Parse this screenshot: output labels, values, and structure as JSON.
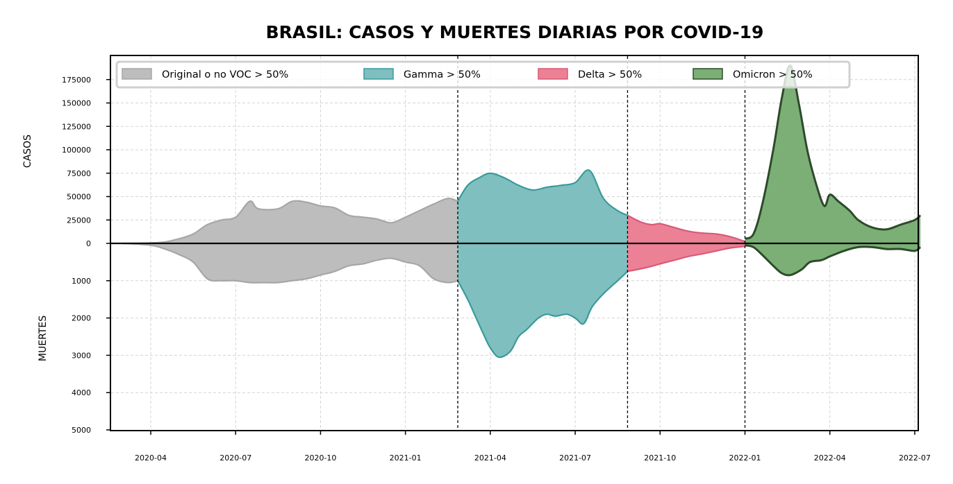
{
  "chart_data": {
    "type": "area",
    "title": "BRASIL: CASOS Y MUERTES DIARIAS POR COVID-19",
    "ylabel_top": "CASOS",
    "ylabel_bottom": "MUERTES",
    "x_ticks": [
      "2020-04",
      "2020-07",
      "2020-10",
      "2021-01",
      "2021-04",
      "2021-07",
      "2021-10",
      "2022-01",
      "2022-04",
      "2022-07"
    ],
    "cases_ticks": [
      0,
      25000,
      50000,
      75000,
      100000,
      125000,
      150000,
      175000
    ],
    "deaths_ticks": [
      1000,
      2000,
      3000,
      4000,
      5000
    ],
    "cases_ylim": [
      0,
      200000
    ],
    "deaths_ylim": [
      0,
      5000
    ],
    "xlim_months": [
      -1.4,
      27.1
    ],
    "vlines_months": [
      10.85,
      16.85,
      21.0
    ],
    "colors": {
      "original": "#bdbdbd",
      "original_edge": "#a6a6a6",
      "gamma": "#7fbfbf",
      "gamma_edge": "#3a9a9a",
      "delta": "#ec8196",
      "delta_edge": "#d85a77",
      "omicron": "#7baf76",
      "omicron_edge": "#2d4a2b"
    },
    "legend": [
      "Original o no VOC > 50%",
      "Gamma > 50%",
      "Delta > 50%",
      "Omicron > 50%"
    ],
    "series": [
      {
        "name": "Original o no VOC > 50%",
        "color_key": "original",
        "cases": [
          [
            -1,
            0
          ],
          [
            0,
            500
          ],
          [
            0.5,
            1500
          ],
          [
            1,
            5000
          ],
          [
            1.5,
            10000
          ],
          [
            2,
            20000
          ],
          [
            2.5,
            25000
          ],
          [
            3,
            28000
          ],
          [
            3.5,
            45000
          ],
          [
            3.8,
            37000
          ],
          [
            4.5,
            37000
          ],
          [
            5,
            45000
          ],
          [
            5.5,
            44000
          ],
          [
            6,
            40000
          ],
          [
            6.5,
            38000
          ],
          [
            7,
            30000
          ],
          [
            7.5,
            28000
          ],
          [
            8,
            26000
          ],
          [
            8.5,
            22000
          ],
          [
            9,
            28000
          ],
          [
            9.5,
            35000
          ],
          [
            10,
            42000
          ],
          [
            10.5,
            48000
          ],
          [
            10.85,
            45000
          ]
        ],
        "deaths": [
          [
            -1,
            0
          ],
          [
            0,
            50
          ],
          [
            0.5,
            150
          ],
          [
            1,
            300
          ],
          [
            1.5,
            500
          ],
          [
            2,
            950
          ],
          [
            2.5,
            1000
          ],
          [
            3,
            1000
          ],
          [
            3.5,
            1050
          ],
          [
            4,
            1050
          ],
          [
            4.5,
            1050
          ],
          [
            5,
            1000
          ],
          [
            5.5,
            950
          ],
          [
            6,
            850
          ],
          [
            6.5,
            750
          ],
          [
            7,
            600
          ],
          [
            7.5,
            550
          ],
          [
            8,
            450
          ],
          [
            8.5,
            400
          ],
          [
            9,
            500
          ],
          [
            9.5,
            600
          ],
          [
            10,
            950
          ],
          [
            10.5,
            1050
          ],
          [
            10.85,
            1000
          ]
        ]
      },
      {
        "name": "Gamma > 50%",
        "color_key": "gamma",
        "cases": [
          [
            10.85,
            45000
          ],
          [
            11.2,
            62000
          ],
          [
            11.6,
            70000
          ],
          [
            12,
            75000
          ],
          [
            12.5,
            70000
          ],
          [
            13,
            62000
          ],
          [
            13.5,
            57000
          ],
          [
            14,
            60000
          ],
          [
            14.5,
            62000
          ],
          [
            15,
            65000
          ],
          [
            15.5,
            78000
          ],
          [
            16,
            48000
          ],
          [
            16.5,
            35000
          ],
          [
            16.85,
            30000
          ]
        ],
        "deaths": [
          [
            10.85,
            1000
          ],
          [
            11.2,
            1500
          ],
          [
            11.5,
            2000
          ],
          [
            11.8,
            2500
          ],
          [
            12,
            2800
          ],
          [
            12.3,
            3050
          ],
          [
            12.7,
            2900
          ],
          [
            13,
            2500
          ],
          [
            13.3,
            2300
          ],
          [
            13.7,
            2000
          ],
          [
            14,
            1900
          ],
          [
            14.3,
            1950
          ],
          [
            14.7,
            1900
          ],
          [
            15,
            2000
          ],
          [
            15.3,
            2150
          ],
          [
            15.6,
            1700
          ],
          [
            16,
            1350
          ],
          [
            16.5,
            1000
          ],
          [
            16.85,
            750
          ]
        ]
      },
      {
        "name": "Delta > 50%",
        "color_key": "delta",
        "cases": [
          [
            16.85,
            30000
          ],
          [
            17.3,
            23000
          ],
          [
            17.7,
            20000
          ],
          [
            18,
            21000
          ],
          [
            18.5,
            17000
          ],
          [
            19,
            13000
          ],
          [
            19.5,
            11000
          ],
          [
            20,
            10000
          ],
          [
            20.5,
            7000
          ],
          [
            21,
            2000
          ]
        ],
        "deaths": [
          [
            16.85,
            750
          ],
          [
            17.5,
            650
          ],
          [
            18,
            550
          ],
          [
            18.5,
            450
          ],
          [
            19,
            350
          ],
          [
            19.5,
            280
          ],
          [
            20,
            200
          ],
          [
            20.5,
            120
          ],
          [
            21,
            80
          ]
        ]
      },
      {
        "name": "Omicron > 50%",
        "color_key": "omicron",
        "cases": [
          [
            21,
            5000
          ],
          [
            21.3,
            10000
          ],
          [
            21.6,
            40000
          ],
          [
            22,
            100000
          ],
          [
            22.3,
            155000
          ],
          [
            22.6,
            190000
          ],
          [
            22.9,
            150000
          ],
          [
            23.2,
            100000
          ],
          [
            23.5,
            65000
          ],
          [
            23.8,
            40000
          ],
          [
            24,
            52000
          ],
          [
            24.3,
            45000
          ],
          [
            24.7,
            35000
          ],
          [
            25,
            25000
          ],
          [
            25.5,
            17000
          ],
          [
            26,
            15000
          ],
          [
            26.5,
            20000
          ],
          [
            27,
            25000
          ],
          [
            27.2,
            30000
          ]
        ],
        "deaths": [
          [
            21,
            50
          ],
          [
            21.3,
            100
          ],
          [
            21.6,
            300
          ],
          [
            22,
            600
          ],
          [
            22.3,
            800
          ],
          [
            22.6,
            850
          ],
          [
            23,
            700
          ],
          [
            23.3,
            500
          ],
          [
            23.7,
            450
          ],
          [
            24,
            350
          ],
          [
            24.5,
            200
          ],
          [
            25,
            100
          ],
          [
            25.5,
            100
          ],
          [
            26,
            150
          ],
          [
            26.5,
            150
          ],
          [
            27,
            200
          ],
          [
            27.2,
            100
          ]
        ]
      }
    ]
  }
}
